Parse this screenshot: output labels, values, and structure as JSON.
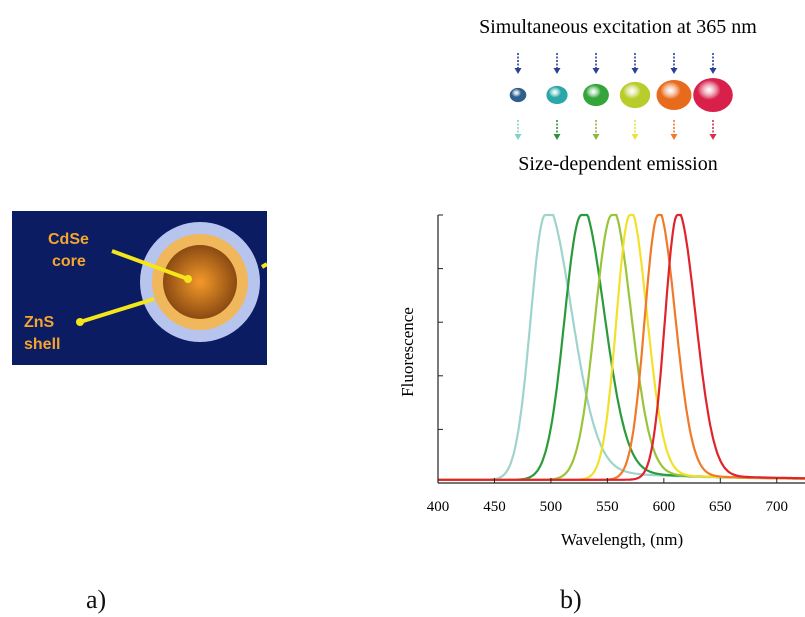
{
  "panel_a": {
    "label": "a)",
    "core_line1": "CdSe",
    "core_line2": "core",
    "shell_line1": "ZnS",
    "shell_line2": "shell",
    "colors": {
      "background": "#0b1c63",
      "shell": "#b6c4ee",
      "shell_inner": "#f0b85a",
      "core": "#8b4a12",
      "core_center": "#f49a2a",
      "pointer": "#f5e61c",
      "label": "#f4a52c"
    }
  },
  "panel_b": {
    "label": "b)",
    "excitation_text": "Simultaneous excitation at 365 nm",
    "emission_text": "Size-dependent emission",
    "dots": [
      {
        "size": 1,
        "color": "#2f5f8c",
        "arrow_color": "#7fd2c8"
      },
      {
        "size": 2,
        "color": "#2aa7a8",
        "arrow_color": "#2f8f3f"
      },
      {
        "size": 3,
        "color": "#34a53a",
        "arrow_color": "#8ab83a"
      },
      {
        "size": 4,
        "color": "#b8cc2a",
        "arrow_color": "#e9e23a"
      },
      {
        "size": 5,
        "color": "#e86a1c",
        "arrow_color": "#ef7a2a"
      },
      {
        "size": 6,
        "color": "#d8204a",
        "arrow_color": "#d8304a"
      }
    ],
    "top_arrow_color": "#2a3f9a"
  },
  "chart_data": {
    "type": "line",
    "xlabel": "Wavelength, (nm)",
    "ylabel": "Fluorescence",
    "xlim": [
      400,
      725
    ],
    "xticks": [
      400,
      450,
      500,
      550,
      600,
      650,
      700
    ],
    "ylim": [
      0,
      1
    ],
    "grid": false,
    "series": [
      {
        "peak": 495,
        "width_left": 13,
        "width_right": 23,
        "tail": 0.05,
        "color": "#9fd4cc"
      },
      {
        "peak": 527,
        "width_left": 15,
        "width_right": 20,
        "tail": 0.04,
        "color": "#2b9a3a"
      },
      {
        "peak": 554,
        "width_left": 15,
        "width_right": 17,
        "tail": 0.03,
        "color": "#9ac43a"
      },
      {
        "peak": 570,
        "width_left": 12,
        "width_right": 15,
        "tail": 0.025,
        "color": "#f2e12a"
      },
      {
        "peak": 595,
        "width_left": 12,
        "width_right": 15,
        "tail": 0.02,
        "color": "#f07a2a"
      },
      {
        "peak": 612,
        "width_left": 11,
        "width_right": 16,
        "tail": 0.02,
        "color": "#e0242c"
      }
    ]
  }
}
